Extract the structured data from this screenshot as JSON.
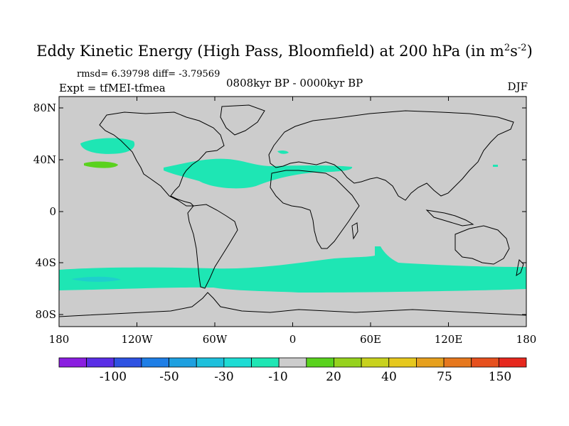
{
  "header": {
    "title": "Eddy Kinetic Energy (High Pass, Bloomfield) at 200 hPa (in m",
    "title_unit_sup1": "2",
    "title_unit_mid": "s",
    "title_unit_sup2": "-2",
    "title_close": ")",
    "stats": "rmsd= 6.39798 diff= -3.79569",
    "experiment": "Expt = tfMEI-tfmea",
    "period": "0808kyr BP - 0000kyr BP",
    "season": "DJF"
  },
  "axes": {
    "lat_labels": [
      "80N",
      "40N",
      "0",
      "40S",
      "80S"
    ],
    "lon_labels": [
      "180",
      "120W",
      "60W",
      "0",
      "60E",
      "120E",
      "180"
    ]
  },
  "colorbar": {
    "colors": [
      "#8a1ee0",
      "#5a2ee6",
      "#2e52e2",
      "#1e7ee6",
      "#1ea0e0",
      "#1ec0dc",
      "#1edcd4",
      "#1ee6b4",
      "#cccccc",
      "#5ad21e",
      "#96d21e",
      "#c8d21e",
      "#e6c81e",
      "#e6a01e",
      "#e6781e",
      "#e6501e",
      "#e6281e"
    ],
    "labels": [
      "-100",
      "-50",
      "-30",
      "-10",
      "20",
      "40",
      "75",
      "150"
    ]
  },
  "map": {
    "background_color": "#cccccc",
    "anomaly_color_cyan": "#1ee6b4",
    "anomaly_color_green": "#5ad21e",
    "coast_color": "#000000"
  }
}
